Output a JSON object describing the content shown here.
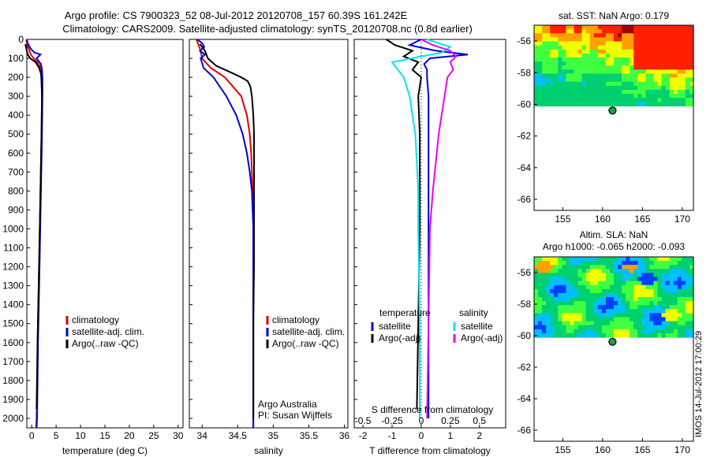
{
  "header": {
    "line1": "Argo profile: CS 7900323_52 08-Jul-2012 20120708_157 60.39S 161.242E",
    "line2": "Climatology: CARS2009. Satellite-adjusted climatology: synTS_20120708.nc (0.8d earlier)"
  },
  "footer_stamp": "IMOS 14-Jul-2012 17:00:29",
  "colors": {
    "climatology": "#dd0000",
    "satellite": "#0000dd",
    "argo": "#000000",
    "sat_salinity": "#00e5ee",
    "argo_salinity": "#ee00ee"
  },
  "chart_data": [
    {
      "type": "line",
      "id": "temperature",
      "xlabel": "temperature (deg C)",
      "ylim": [
        0,
        2050
      ],
      "xlim": [
        -1,
        31
      ],
      "yticks": [
        0,
        100,
        200,
        300,
        400,
        500,
        600,
        700,
        800,
        900,
        1000,
        1100,
        1200,
        1300,
        1400,
        1500,
        1600,
        1700,
        1800,
        1900,
        2000
      ],
      "xticks": [
        0,
        5,
        10,
        15,
        20,
        25,
        30
      ],
      "legend": [
        "climatology",
        "satellite-adj. clim.",
        "Argo(..raw -QC)"
      ],
      "series": [
        {
          "name": "climatology",
          "color": "#dd0000",
          "depth": [
            0,
            20,
            50,
            80,
            100,
            120,
            150,
            200,
            300,
            500,
            800,
            1200,
            1600,
            2000,
            2050
          ],
          "values": [
            -1.1,
            -1.0,
            -0.6,
            -0.2,
            0.4,
            1.2,
            1.8,
            2.0,
            2.1,
            2.0,
            1.8,
            1.5,
            1.2,
            1.0,
            0.9
          ]
        },
        {
          "name": "satellite-adj. clim.",
          "color": "#0000dd",
          "depth": [
            0,
            20,
            50,
            70,
            80,
            100,
            130,
            160,
            200,
            300,
            500,
            800,
            1200,
            1600,
            2000,
            2050
          ],
          "values": [
            -1.0,
            -0.8,
            -0.2,
            0.6,
            1.8,
            1.0,
            1.9,
            2.1,
            2.2,
            2.2,
            2.1,
            1.9,
            1.6,
            1.3,
            1.1,
            1.0
          ]
        },
        {
          "name": "Argo(..raw -QC)",
          "color": "#000000",
          "depth": [
            25,
            50,
            80,
            100,
            120,
            150,
            180,
            220,
            300,
            500,
            800,
            1200,
            1600,
            1950
          ],
          "values": [
            -1.3,
            -1.1,
            -0.8,
            -0.3,
            0.8,
            1.5,
            1.9,
            2.0,
            2.1,
            2.0,
            1.8,
            1.5,
            1.2,
            1.0
          ]
        }
      ]
    },
    {
      "type": "line",
      "id": "salinity",
      "xlabel": "salinity",
      "ylim": [
        0,
        2050
      ],
      "xlim": [
        33.82,
        36.05
      ],
      "xticks": [
        34,
        34.5,
        35,
        35.5,
        36
      ],
      "legend": [
        "climatology",
        "satellite-adj. clim.",
        "Argo(..raw -QC)"
      ],
      "annotation": [
        "Argo Australia",
        "PI: Susan Wijffels"
      ],
      "series": [
        {
          "name": "climatology",
          "color": "#dd0000",
          "depth": [
            0,
            20,
            50,
            80,
            100,
            150,
            200,
            300,
            400,
            500,
            600,
            700,
            800,
            1000,
            1500,
            2000,
            2050
          ],
          "values": [
            33.92,
            33.94,
            33.97,
            33.99,
            34.0,
            34.12,
            34.32,
            34.55,
            34.63,
            34.67,
            34.69,
            34.7,
            34.71,
            34.72,
            34.72,
            34.72,
            34.72
          ]
        },
        {
          "name": "satellite-adj. clim.",
          "color": "#0000dd",
          "depth": [
            0,
            20,
            40,
            60,
            80,
            100,
            150,
            200,
            300,
            400,
            500,
            600,
            700,
            800,
            900,
            1000,
            1500,
            2000,
            2050
          ],
          "values": [
            33.93,
            34.0,
            34.03,
            33.97,
            34.04,
            33.98,
            34.02,
            34.16,
            34.34,
            34.48,
            34.57,
            34.63,
            34.67,
            34.7,
            34.71,
            34.72,
            34.72,
            34.72,
            34.72
          ]
        },
        {
          "name": "Argo(..raw -QC)",
          "color": "#000000",
          "depth": [
            25,
            60,
            100,
            140,
            170,
            200,
            220,
            250,
            300,
            400,
            500,
            600,
            700,
            800,
            900,
            1000,
            1200,
            1500,
            1700,
            2000
          ],
          "values": [
            33.97,
            34.04,
            34.08,
            34.2,
            34.38,
            34.55,
            34.64,
            34.68,
            34.7,
            34.72,
            34.73,
            34.73,
            34.73,
            34.73,
            34.73,
            34.73,
            34.73,
            34.72,
            34.72,
            34.72
          ]
        }
      ]
    },
    {
      "type": "line",
      "id": "difference",
      "xlabel": "T difference from climatology",
      "top_axis_label": "S difference from climatology",
      "ylim": [
        0,
        2050
      ],
      "xlim": [
        -2.3,
        2.9
      ],
      "xticks": [
        -2,
        -1,
        0,
        1,
        2
      ],
      "s_xticks": [
        -0.5,
        -0.25,
        0,
        0.25,
        0.5
      ],
      "legend_headers": [
        "temperature",
        "salinity"
      ],
      "legend": [
        "satellite",
        "Argo(-adj)",
        "satellite",
        "Argo(-adj)"
      ],
      "series": [
        {
          "name": "temperature satellite",
          "color": "#0000dd",
          "depth": [
            0,
            30,
            60,
            80,
            100,
            130,
            160,
            200,
            300,
            600,
            1000,
            1500,
            2000
          ],
          "values": [
            0.0,
            -0.4,
            0.5,
            1.6,
            0.3,
            0.1,
            0.2,
            0.2,
            0.25,
            0.25,
            0.25,
            0.25,
            0.25
          ]
        },
        {
          "name": "temperature Argo(-adj)",
          "color": "#000000",
          "depth": [
            0,
            30,
            60,
            90,
            120,
            160,
            200,
            300,
            500,
            1000,
            1500,
            1950
          ],
          "values": [
            -1.2,
            -0.9,
            -0.3,
            -0.6,
            -0.1,
            -0.3,
            0.0,
            -0.1,
            -0.05,
            -0.05,
            -0.1,
            -0.15
          ]
        },
        {
          "name": "salinity satellite",
          "color": "#00e5ee",
          "depth": [
            0,
            40,
            70,
            90,
            120,
            160,
            200,
            300,
            500,
            800,
            1000,
            1500,
            2000
          ],
          "values": [
            0.2,
            1.0,
            0.7,
            0.0,
            -1.0,
            -0.8,
            -0.6,
            -0.4,
            -0.2,
            -0.1,
            -0.1,
            -0.05,
            -0.05
          ]
        },
        {
          "name": "salinity Argo(-adj)",
          "color": "#ee00ee",
          "depth": [
            0,
            30,
            60,
            90,
            120,
            160,
            200,
            300,
            500,
            800,
            1000,
            1500,
            2000
          ],
          "values": [
            0.0,
            0.4,
            1.0,
            1.2,
            1.0,
            1.1,
            0.9,
            0.8,
            0.6,
            0.4,
            0.3,
            0.25,
            0.2
          ]
        }
      ]
    },
    {
      "type": "heatmap",
      "id": "sst_map",
      "title": "sat. SST: NaN Argo: 0.179",
      "xlim": [
        151.4,
        171.4
      ],
      "ylim": [
        -66.7,
        -55.0
      ],
      "xticks": [
        155,
        160,
        165,
        170
      ],
      "yticks": [
        -56,
        -58,
        -60,
        -62,
        -64,
        -66
      ],
      "marker": {
        "lon": 161.242,
        "lat": -60.39
      }
    },
    {
      "type": "heatmap",
      "id": "sla_map",
      "title": "Altim. SLA: NaN",
      "subtitle": "Argo h1000: -0.065 h2000: -0.093",
      "xlim": [
        151.4,
        171.4
      ],
      "ylim": [
        -66.7,
        -55.0
      ],
      "xticks": [
        155,
        160,
        165,
        170
      ],
      "yticks": [
        -56,
        -58,
        -60,
        -62,
        -64,
        -66
      ],
      "marker": {
        "lon": 161.242,
        "lat": -60.39
      }
    }
  ]
}
